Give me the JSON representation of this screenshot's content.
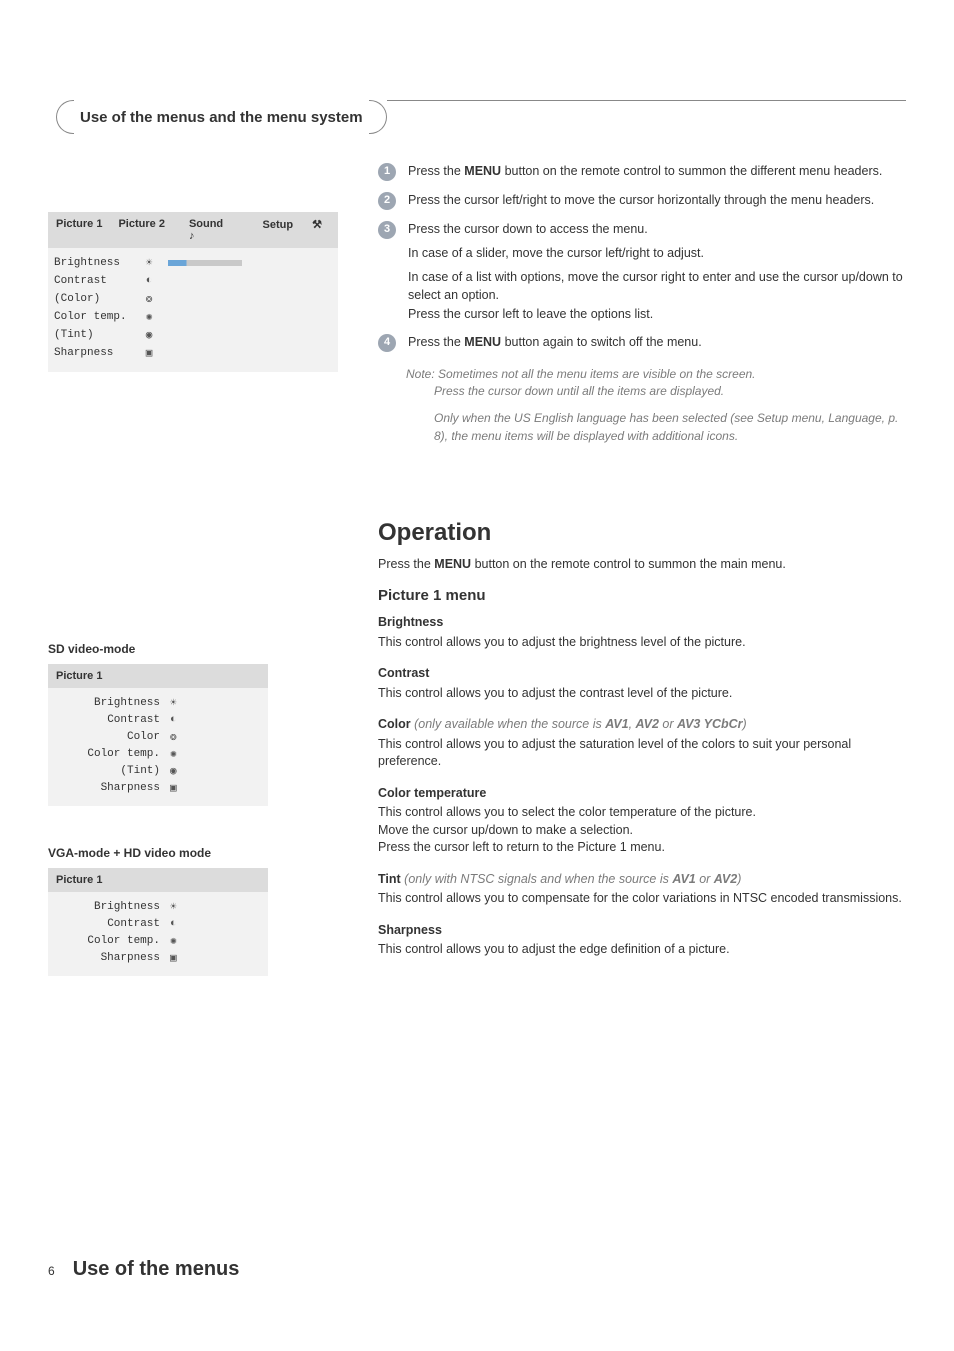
{
  "section_title": "Use of the menus and the menu system",
  "osd": {
    "tabs": [
      "Picture 1",
      "Picture 2",
      "Sound",
      "Setup"
    ],
    "sound_glyph": "♪",
    "setup_glyph": "⚒",
    "rows": [
      {
        "label": "Brightness",
        "icon": "sun"
      },
      {
        "label": "Contrast",
        "icon": "contrast"
      },
      {
        "label": "(Color)",
        "icon": "palette"
      },
      {
        "label": "Color temp.",
        "icon": "sparkle"
      },
      {
        "label": "(Tint)",
        "icon": "tint"
      },
      {
        "label": "Sharpness",
        "icon": "sharp"
      }
    ]
  },
  "steps": {
    "s1": {
      "t1": "Press the ",
      "bold": "MENU",
      "t2": " button on the remote control to summon the different menu headers."
    },
    "s2": "Press the cursor left/right to move the cursor horizontally through the menu headers.",
    "s3": {
      "main": "Press the cursor down to access the menu.",
      "sub1": "In case of a slider, move the cursor left/right to adjust.",
      "sub2": "In case of a list with options, move the cursor right to enter and use the cursor up/down to select an option.",
      "sub3": "Press the cursor left to leave the options list."
    },
    "s4": {
      "t1": "Press the ",
      "bold": "MENU",
      "t2": " button again to switch off the menu."
    }
  },
  "note": {
    "l1": "Note: Sometimes not all the menu items are visible on the screen.",
    "l2": "Press the cursor down until all the items are displayed.",
    "l3": "Only when the US English language has been selected (see Setup menu, Language, p. 8), the menu items will be displayed with additional icons."
  },
  "operation": {
    "heading": "Operation",
    "intro_pre": "Press the ",
    "intro_bold": "MENU",
    "intro_post": " button on the remote control to summon the main menu.",
    "pic1_heading": "Picture 1 menu",
    "brightness": {
      "h": "Brightness",
      "b": "This control allows you to adjust the brightness level of the picture."
    },
    "contrast": {
      "h": "Contrast",
      "b": "This control allows you to adjust the contrast level of the picture."
    },
    "color": {
      "h": "Color",
      "cond_pre": " (only available when the source is ",
      "av1": "AV1",
      "sep1": ", ",
      "av2": "AV2",
      "sep2": " or ",
      "av3": "AV3 YCbCr",
      "cond_post": ")",
      "b": "This control allows you to adjust the saturation level of the colors to suit your personal preference."
    },
    "colortemp": {
      "h": "Color temperature",
      "b1": "This control allows you to select the color temperature of the picture.",
      "b2": "Move the cursor up/down to make a selection.",
      "b3": "Press the cursor left to return to the Picture 1 menu."
    },
    "tint": {
      "h": "Tint",
      "cond_pre": " (only with NTSC signals and when the source is ",
      "av1": "AV1",
      "sep": " or ",
      "av2": "AV2",
      "cond_post": ")",
      "b": "This control allows you to compensate for the color variations in NTSC encoded transmissions."
    },
    "sharp": {
      "h": "Sharpness",
      "b": "This control allows you to adjust the edge definition of a picture."
    }
  },
  "left_lower": {
    "sd_label": "SD video-mode",
    "vga_label": "VGA-mode + HD video mode",
    "picture1": "Picture 1",
    "sd_rows": [
      {
        "l": "Brightness",
        "i": "sun"
      },
      {
        "l": "Contrast",
        "i": "contrast"
      },
      {
        "l": "Color",
        "i": "palette"
      },
      {
        "l": "Color temp.",
        "i": "sparkle"
      },
      {
        "l": "(Tint)",
        "i": "tint"
      },
      {
        "l": "Sharpness",
        "i": "sharp"
      }
    ],
    "vga_rows": [
      {
        "l": "Brightness",
        "i": "sun"
      },
      {
        "l": "Contrast",
        "i": "contrast"
      },
      {
        "l": "Color temp.",
        "i": "sparkle"
      },
      {
        "l": "Sharpness",
        "i": "sharp"
      }
    ]
  },
  "footer": {
    "num": "6",
    "title": "Use of the menus"
  },
  "icons": {
    "sun": "☀",
    "contrast": "◐",
    "palette": "❂",
    "sparkle": "✺",
    "tint": "◉",
    "sharp": "▣"
  }
}
